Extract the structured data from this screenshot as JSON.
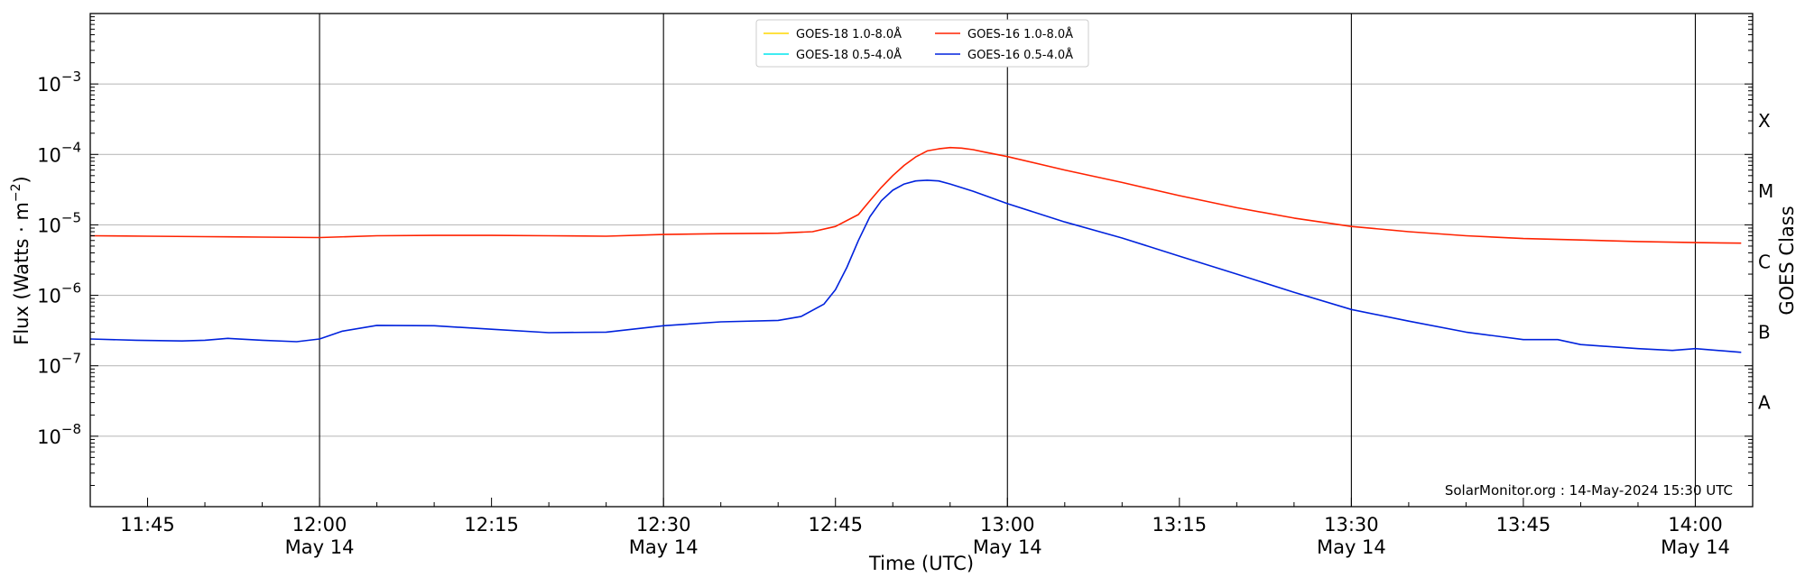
{
  "chart_data": {
    "type": "line",
    "xlabel": "Time (UTC)",
    "ylabel": "Flux (Watts · m^-2)",
    "y2label": "GOES Class",
    "yscale": "log",
    "ylim": [
      1e-09,
      0.01
    ],
    "xlim": [
      "11:40",
      "14:05"
    ],
    "watermark": "SolarMonitor.org : 14-May-2024 15:30 UTC",
    "x_ticks": [
      {
        "time": "11:45",
        "date": ""
      },
      {
        "time": "12:00",
        "date": "May 14"
      },
      {
        "time": "12:15",
        "date": ""
      },
      {
        "time": "12:30",
        "date": "May 14"
      },
      {
        "time": "12:45",
        "date": ""
      },
      {
        "time": "13:00",
        "date": "May 14"
      },
      {
        "time": "13:15",
        "date": ""
      },
      {
        "time": "13:30",
        "date": "May 14"
      },
      {
        "time": "13:45",
        "date": ""
      },
      {
        "time": "14:00",
        "date": "May 14"
      }
    ],
    "vlines": [
      "12:00",
      "12:30",
      "13:00",
      "13:30",
      "14:00"
    ],
    "y_ticks": [
      {
        "value": 1e-08,
        "base": "10",
        "exp": "−8"
      },
      {
        "value": 1e-07,
        "base": "10",
        "exp": "−7"
      },
      {
        "value": 1e-06,
        "base": "10",
        "exp": "−6"
      },
      {
        "value": 1e-05,
        "base": "10",
        "exp": "−5"
      },
      {
        "value": 0.0001,
        "base": "10",
        "exp": "−4"
      },
      {
        "value": 0.001,
        "base": "10",
        "exp": "−3"
      }
    ],
    "goes_classes": [
      {
        "label": "A",
        "value": 3e-08
      },
      {
        "label": "B",
        "value": 3e-07
      },
      {
        "label": "C",
        "value": 3e-06
      },
      {
        "label": "M",
        "value": 3e-05
      },
      {
        "label": "X",
        "value": 0.0003
      }
    ],
    "grid": "horizontal",
    "legend": {
      "position": "top-center",
      "entries": [
        {
          "name": "GOES-18 1.0-8.0Å",
          "color": "#ffd700"
        },
        {
          "name": "GOES-18 0.5-4.0Å",
          "color": "#00e5ee"
        },
        {
          "name": "GOES-16 1.0-8.0Å",
          "color": "#ff2200"
        },
        {
          "name": "GOES-16 0.5-4.0Å",
          "color": "#0022dd"
        }
      ]
    },
    "series": [
      {
        "name": "GOES-16 1.0-8.0Å",
        "color": "#ff2200",
        "points": [
          [
            "11:40",
            7e-06
          ],
          [
            "11:45",
            6.9e-06
          ],
          [
            "11:50",
            6.8e-06
          ],
          [
            "11:55",
            6.7e-06
          ],
          [
            "12:00",
            6.6e-06
          ],
          [
            "12:05",
            7e-06
          ],
          [
            "12:10",
            7.1e-06
          ],
          [
            "12:15",
            7.1e-06
          ],
          [
            "12:20",
            7e-06
          ],
          [
            "12:25",
            6.9e-06
          ],
          [
            "12:30",
            7.3e-06
          ],
          [
            "12:35",
            7.5e-06
          ],
          [
            "12:40",
            7.6e-06
          ],
          [
            "12:43",
            8e-06
          ],
          [
            "12:45",
            9.5e-06
          ],
          [
            "12:47",
            1.4e-05
          ],
          [
            "12:48",
            2.2e-05
          ],
          [
            "12:49",
            3.4e-05
          ],
          [
            "12:50",
            5e-05
          ],
          [
            "12:51",
            7e-05
          ],
          [
            "12:52",
            9.2e-05
          ],
          [
            "12:53",
            0.000112
          ],
          [
            "12:54",
            0.00012
          ],
          [
            "12:55",
            0.000125
          ],
          [
            "12:56",
            0.000123
          ],
          [
            "12:57",
            0.000117
          ],
          [
            "12:58",
            0.000108
          ],
          [
            "13:00",
            9.3e-05
          ],
          [
            "13:05",
            6e-05
          ],
          [
            "13:10",
            4e-05
          ],
          [
            "13:15",
            2.6e-05
          ],
          [
            "13:20",
            1.75e-05
          ],
          [
            "13:25",
            1.25e-05
          ],
          [
            "13:30",
            9.5e-06
          ],
          [
            "13:35",
            8e-06
          ],
          [
            "13:40",
            7e-06
          ],
          [
            "13:45",
            6.4e-06
          ],
          [
            "13:50",
            6.1e-06
          ],
          [
            "13:55",
            5.8e-06
          ],
          [
            "14:00",
            5.6e-06
          ],
          [
            "14:04",
            5.5e-06
          ]
        ]
      },
      {
        "name": "GOES-16 0.5-4.0Å",
        "color": "#0022dd",
        "points": [
          [
            "11:40",
            2.4e-07
          ],
          [
            "11:44",
            2.3e-07
          ],
          [
            "11:48",
            2.25e-07
          ],
          [
            "11:50",
            2.3e-07
          ],
          [
            "11:52",
            2.45e-07
          ],
          [
            "11:55",
            2.3e-07
          ],
          [
            "11:58",
            2.2e-07
          ],
          [
            "12:00",
            2.4e-07
          ],
          [
            "12:02",
            3.1e-07
          ],
          [
            "12:05",
            3.75e-07
          ],
          [
            "12:10",
            3.7e-07
          ],
          [
            "12:15",
            3.3e-07
          ],
          [
            "12:20",
            2.95e-07
          ],
          [
            "12:25",
            3e-07
          ],
          [
            "12:30",
            3.7e-07
          ],
          [
            "12:35",
            4.2e-07
          ],
          [
            "12:40",
            4.4e-07
          ],
          [
            "12:42",
            5e-07
          ],
          [
            "12:44",
            7.5e-07
          ],
          [
            "12:45",
            1.2e-06
          ],
          [
            "12:46",
            2.5e-06
          ],
          [
            "12:47",
            6e-06
          ],
          [
            "12:48",
            1.3e-05
          ],
          [
            "12:49",
            2.2e-05
          ],
          [
            "12:50",
            3.1e-05
          ],
          [
            "12:51",
            3.8e-05
          ],
          [
            "12:52",
            4.2e-05
          ],
          [
            "12:53",
            4.3e-05
          ],
          [
            "12:54",
            4.2e-05
          ],
          [
            "12:55",
            3.8e-05
          ],
          [
            "12:57",
            3e-05
          ],
          [
            "13:00",
            2e-05
          ],
          [
            "13:05",
            1.1e-05
          ],
          [
            "13:10",
            6.5e-06
          ],
          [
            "13:15",
            3.6e-06
          ],
          [
            "13:20",
            2e-06
          ],
          [
            "13:25",
            1.1e-06
          ],
          [
            "13:30",
            6.3e-07
          ],
          [
            "13:35",
            4.3e-07
          ],
          [
            "13:40",
            3e-07
          ],
          [
            "13:45",
            2.35e-07
          ],
          [
            "13:48",
            2.35e-07
          ],
          [
            "13:50",
            2e-07
          ],
          [
            "13:55",
            1.75e-07
          ],
          [
            "13:58",
            1.65e-07
          ],
          [
            "14:00",
            1.75e-07
          ],
          [
            "14:04",
            1.55e-07
          ]
        ]
      }
    ]
  }
}
